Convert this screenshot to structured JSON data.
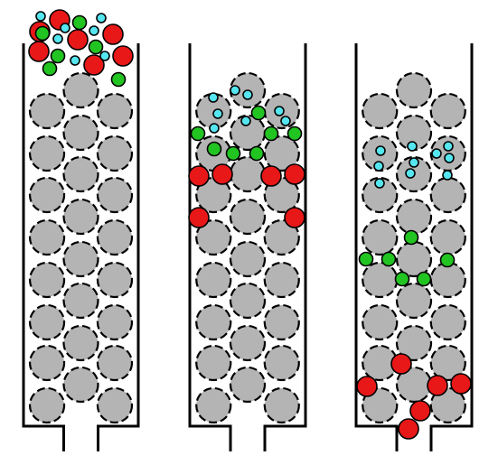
{
  "colors": {
    "background": "#ffffff",
    "wall": "#000000",
    "bead_fill": "#b4b4b4",
    "bead_stroke": "#000000",
    "large_particle": "#e81818",
    "medium_particle": "#22c422",
    "small_particle": "#55e6f0",
    "particle_stroke": "#000000"
  },
  "diagram": {
    "panel_count": 3,
    "panels": [
      {
        "stage": "initial",
        "description_visible": false
      },
      {
        "stage": "intermediate",
        "description_visible": false
      },
      {
        "stage": "final",
        "description_visible": false
      }
    ],
    "particle_types": [
      "large-red-particle",
      "medium-green-particle",
      "small-cyan-particle"
    ],
    "packing_bead": "gray-dashed-bead"
  }
}
